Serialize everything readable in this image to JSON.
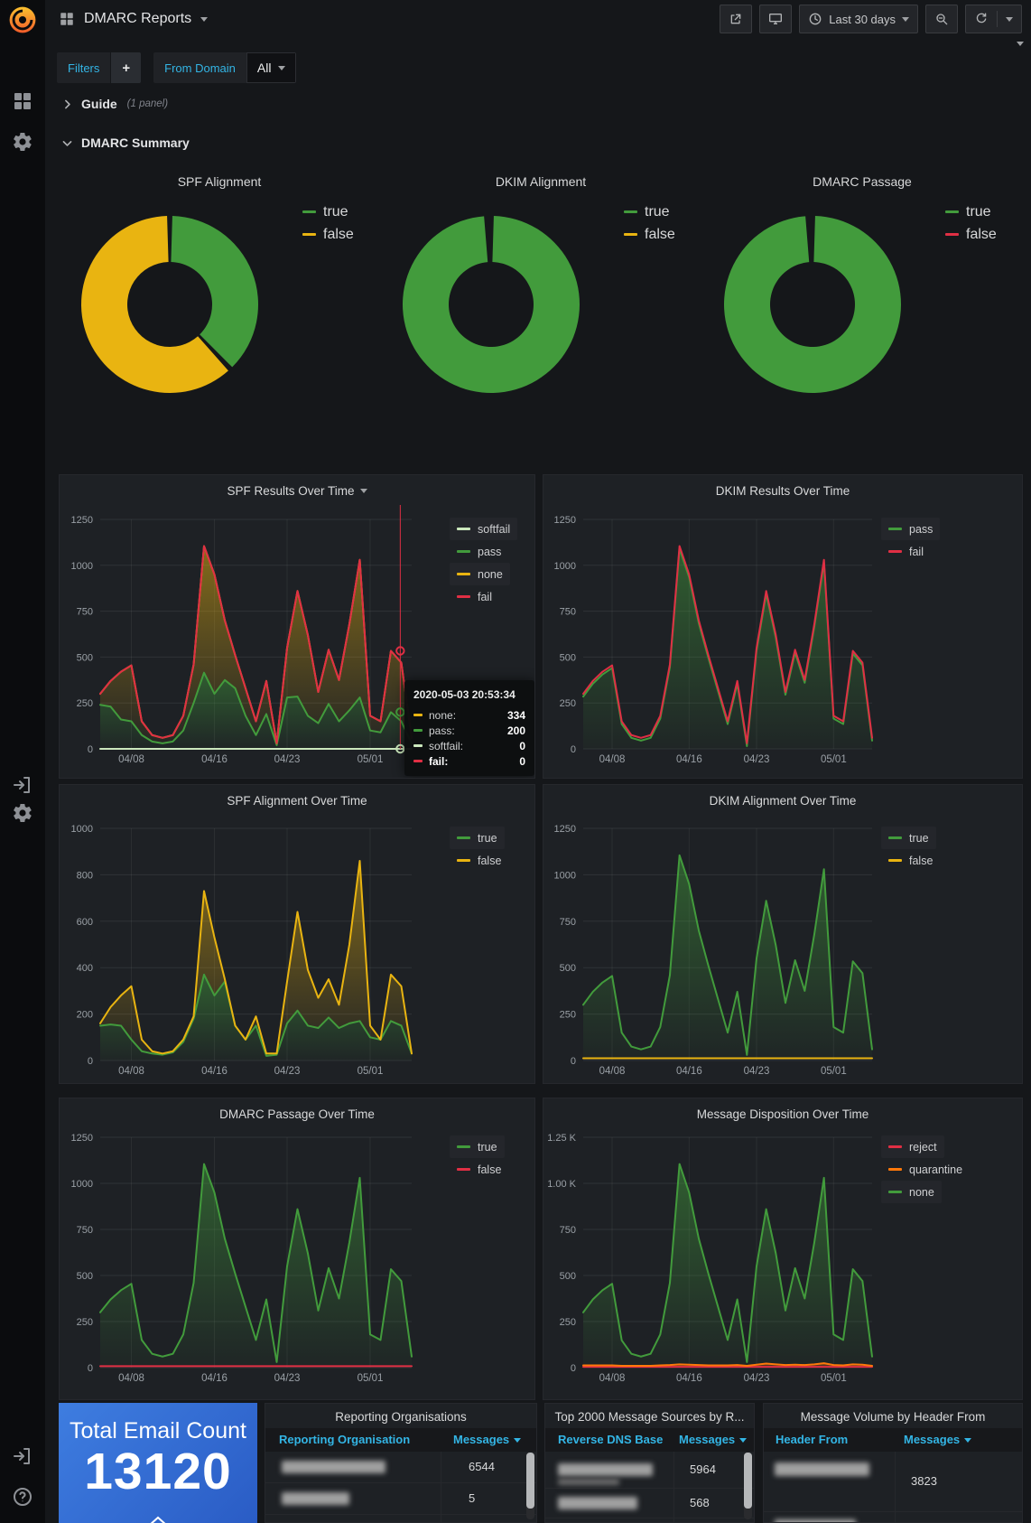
{
  "colors": {
    "green": "#429b3c",
    "yellow": "#e9b411",
    "red": "#e02f44",
    "pale_green": "#cbe8bd",
    "orange": "#ff780a",
    "cyan": "#33b5e5",
    "grid": "rgba(255,255,255,0.08)"
  },
  "header": {
    "title": "DMARC Reports",
    "time_range": "Last 30 days"
  },
  "filters": {
    "label": "Filters",
    "add_label": "+",
    "variable": {
      "label": "From Domain",
      "value": "All"
    }
  },
  "rows": {
    "guide": {
      "title": "Guide",
      "meta": "(1 panel)"
    },
    "summary": {
      "title": "DMARC Summary"
    }
  },
  "chart_data": [
    {
      "id": "spf-alignment-pie",
      "type": "pie",
      "title": "SPF Alignment",
      "labels": [
        "true",
        "false"
      ],
      "values": [
        38,
        62
      ],
      "unit": "percent",
      "colors": [
        "green",
        "yellow"
      ],
      "legend_position": "right"
    },
    {
      "id": "dkim-alignment-pie",
      "type": "pie",
      "title": "DKIM Alignment",
      "labels": [
        "true",
        "false"
      ],
      "values": [
        99.2,
        0.8
      ],
      "unit": "percent",
      "colors": [
        "green",
        "yellow"
      ],
      "legend_position": "right"
    },
    {
      "id": "dmarc-passage-pie",
      "type": "pie",
      "title": "DMARC Passage",
      "labels": [
        "true",
        "false"
      ],
      "values": [
        99.2,
        0.8
      ],
      "unit": "percent",
      "colors": [
        "green",
        "red"
      ],
      "legend_position": "right"
    },
    {
      "id": "spf-results",
      "type": "area",
      "title": "SPF Results Over Time",
      "stacked": true,
      "x": [
        "04/05",
        "04/06",
        "04/07",
        "04/08",
        "04/09",
        "04/10",
        "04/11",
        "04/12",
        "04/13",
        "04/14",
        "04/15",
        "04/16",
        "04/17",
        "04/18",
        "04/19",
        "04/20",
        "04/21",
        "04/22",
        "04/23",
        "04/24",
        "04/25",
        "04/26",
        "04/27",
        "04/28",
        "04/29",
        "04/30",
        "05/01",
        "05/02",
        "05/03",
        "05/04",
        "05/05"
      ],
      "x_ticks": [
        "04/08",
        "04/16",
        "04/23",
        "05/01"
      ],
      "x_tick_idx": [
        3,
        11,
        18,
        26
      ],
      "ymax": 1250,
      "yticks": [
        0,
        250,
        500,
        750,
        1000,
        1250
      ],
      "series": [
        {
          "name": "softfail",
          "color": "pale_green",
          "fill": false,
          "values": [
            0,
            0,
            0,
            0,
            0,
            0,
            0,
            0,
            0,
            0,
            0,
            0,
            0,
            0,
            0,
            0,
            0,
            0,
            0,
            0,
            0,
            0,
            0,
            0,
            0,
            0,
            0,
            0,
            0,
            0,
            0
          ]
        },
        {
          "name": "pass",
          "color": "green",
          "fill": true,
          "values": [
            240,
            230,
            160,
            150,
            75,
            40,
            30,
            40,
            100,
            250,
            415,
            300,
            375,
            330,
            180,
            75,
            190,
            20,
            280,
            285,
            180,
            140,
            245,
            150,
            210,
            280,
            100,
            90,
            200,
            150,
            30
          ]
        },
        {
          "name": "none",
          "color": "yellow",
          "fill": true,
          "values": [
            60,
            140,
            260,
            305,
            75,
            35,
            30,
            35,
            80,
            210,
            690,
            650,
            325,
            180,
            150,
            75,
            180,
            10,
            270,
            575,
            440,
            170,
            295,
            225,
            470,
            750,
            80,
            60,
            334,
            320,
            30
          ]
        },
        {
          "name": "fail",
          "color": "red",
          "fill": false,
          "values": [
            0,
            0,
            0,
            0,
            0,
            0,
            0,
            0,
            0,
            0,
            0,
            0,
            0,
            0,
            0,
            0,
            0,
            0,
            0,
            0,
            0,
            0,
            0,
            0,
            0,
            0,
            0,
            0,
            0,
            0,
            0
          ]
        }
      ],
      "legend": [
        "softfail",
        "pass",
        "none",
        "fail"
      ],
      "hover": {
        "x_index": 28.9,
        "line_color": "red",
        "points": [
          {
            "value": 534,
            "color": "red"
          },
          {
            "value": 200,
            "color": "green"
          },
          {
            "value": 0,
            "color": "pale_green"
          }
        ]
      }
    },
    {
      "id": "dkim-results",
      "type": "area",
      "title": "DKIM Results Over Time",
      "stacked": true,
      "x": [
        "04/05",
        "04/06",
        "04/07",
        "04/08",
        "04/09",
        "04/10",
        "04/11",
        "04/12",
        "04/13",
        "04/14",
        "04/15",
        "04/16",
        "04/17",
        "04/18",
        "04/19",
        "04/20",
        "04/21",
        "04/22",
        "04/23",
        "04/24",
        "04/25",
        "04/26",
        "04/27",
        "04/28",
        "04/29",
        "04/30",
        "05/01",
        "05/02",
        "05/03",
        "05/04",
        "05/05"
      ],
      "x_ticks": [
        "04/08",
        "04/16",
        "04/23",
        "05/01"
      ],
      "x_tick_idx": [
        3,
        11,
        18,
        26
      ],
      "ymax": 1250,
      "yticks": [
        0,
        250,
        500,
        750,
        1000,
        1250
      ],
      "series": [
        {
          "name": "pass",
          "color": "green",
          "fill": true,
          "values": [
            285,
            355,
            405,
            440,
            135,
            60,
            45,
            60,
            165,
            445,
            1090,
            935,
            685,
            495,
            315,
            135,
            355,
            15,
            535,
            845,
            605,
            295,
            525,
            360,
            665,
            1015,
            165,
            135,
            519,
            455,
            45
          ]
        },
        {
          "name": "fail",
          "color": "red",
          "fill": false,
          "values": [
            15,
            15,
            15,
            15,
            15,
            15,
            15,
            15,
            15,
            15,
            15,
            15,
            15,
            15,
            15,
            15,
            15,
            15,
            15,
            15,
            15,
            15,
            15,
            15,
            15,
            15,
            15,
            15,
            15,
            15,
            15
          ]
        }
      ],
      "legend": [
        "pass",
        "fail"
      ]
    },
    {
      "id": "spf-align",
      "type": "area",
      "title": "SPF Alignment Over Time",
      "stacked": true,
      "x": [
        "04/05",
        "04/06",
        "04/07",
        "04/08",
        "04/09",
        "04/10",
        "04/11",
        "04/12",
        "04/13",
        "04/14",
        "04/15",
        "04/16",
        "04/17",
        "04/18",
        "04/19",
        "04/20",
        "04/21",
        "04/22",
        "04/23",
        "04/24",
        "04/25",
        "04/26",
        "04/27",
        "04/28",
        "04/29",
        "04/30",
        "05/01",
        "05/02",
        "05/03",
        "05/04",
        "05/05"
      ],
      "x_ticks": [
        "04/08",
        "04/16",
        "04/23",
        "05/01"
      ],
      "x_tick_idx": [
        3,
        11,
        18,
        26
      ],
      "ymax": 1000,
      "yticks": [
        0,
        200,
        400,
        600,
        800,
        1000
      ],
      "series": [
        {
          "name": "true",
          "color": "green",
          "fill": true,
          "values": [
            150,
            155,
            150,
            90,
            40,
            30,
            25,
            35,
            80,
            180,
            370,
            280,
            340,
            150,
            90,
            150,
            20,
            25,
            160,
            215,
            150,
            140,
            185,
            140,
            160,
            170,
            100,
            90,
            170,
            150,
            30
          ]
        },
        {
          "name": "false",
          "color": "yellow",
          "fill": true,
          "values": [
            10,
            75,
            130,
            230,
            50,
            10,
            5,
            5,
            10,
            10,
            360,
            250,
            10,
            0,
            0,
            40,
            10,
            5,
            180,
            425,
            240,
            130,
            165,
            100,
            340,
            690,
            50,
            0,
            200,
            170,
            0
          ]
        }
      ],
      "legend": [
        "true",
        "false"
      ]
    },
    {
      "id": "dkim-align",
      "type": "area",
      "title": "DKIM Alignment Over Time",
      "stacked": true,
      "x": [
        "04/05",
        "04/06",
        "04/07",
        "04/08",
        "04/09",
        "04/10",
        "04/11",
        "04/12",
        "04/13",
        "04/14",
        "04/15",
        "04/16",
        "04/17",
        "04/18",
        "04/19",
        "04/20",
        "04/21",
        "04/22",
        "04/23",
        "04/24",
        "04/25",
        "04/26",
        "04/27",
        "04/28",
        "04/29",
        "04/30",
        "05/01",
        "05/02",
        "05/03",
        "05/04",
        "05/05"
      ],
      "x_ticks": [
        "04/08",
        "04/16",
        "04/23",
        "05/01"
      ],
      "x_tick_idx": [
        3,
        11,
        18,
        26
      ],
      "ymax": 1250,
      "yticks": [
        0,
        250,
        500,
        750,
        1000,
        1250
      ],
      "series": [
        {
          "name": "false",
          "color": "yellow",
          "fill": false,
          "values": [
            12,
            12,
            12,
            12,
            12,
            12,
            12,
            12,
            12,
            12,
            12,
            12,
            12,
            12,
            12,
            12,
            12,
            12,
            12,
            12,
            12,
            12,
            12,
            12,
            12,
            12,
            12,
            12,
            12,
            12,
            12
          ]
        },
        {
          "name": "true",
          "color": "green",
          "fill": true,
          "values": [
            288,
            358,
            408,
            443,
            138,
            63,
            48,
            63,
            168,
            448,
            1093,
            938,
            688,
            498,
            318,
            138,
            358,
            18,
            538,
            848,
            608,
            298,
            528,
            363,
            668,
            1018,
            168,
            138,
            522,
            458,
            48
          ]
        }
      ],
      "legend": [
        "true",
        "false"
      ]
    },
    {
      "id": "dmarc-passage",
      "type": "area",
      "title": "DMARC Passage Over Time",
      "stacked": true,
      "x": [
        "04/05",
        "04/06",
        "04/07",
        "04/08",
        "04/09",
        "04/10",
        "04/11",
        "04/12",
        "04/13",
        "04/14",
        "04/15",
        "04/16",
        "04/17",
        "04/18",
        "04/19",
        "04/20",
        "04/21",
        "04/22",
        "04/23",
        "04/24",
        "04/25",
        "04/26",
        "04/27",
        "04/28",
        "04/29",
        "04/30",
        "05/01",
        "05/02",
        "05/03",
        "05/04",
        "05/05"
      ],
      "x_ticks": [
        "04/08",
        "04/16",
        "04/23",
        "05/01"
      ],
      "x_tick_idx": [
        3,
        11,
        18,
        26
      ],
      "ymax": 1250,
      "yticks": [
        0,
        250,
        500,
        750,
        1000,
        1250
      ],
      "series": [
        {
          "name": "false",
          "color": "red",
          "fill": false,
          "values": [
            8,
            8,
            8,
            8,
            8,
            8,
            8,
            8,
            8,
            8,
            8,
            8,
            8,
            8,
            8,
            8,
            8,
            8,
            8,
            8,
            8,
            8,
            8,
            8,
            8,
            8,
            8,
            8,
            8,
            8,
            8
          ]
        },
        {
          "name": "true",
          "color": "green",
          "fill": true,
          "values": [
            292,
            362,
            412,
            447,
            142,
            67,
            52,
            67,
            172,
            452,
            1097,
            942,
            692,
            502,
            322,
            142,
            362,
            22,
            542,
            852,
            612,
            302,
            532,
            367,
            672,
            1022,
            172,
            142,
            526,
            462,
            52
          ]
        }
      ],
      "legend": [
        "true",
        "false"
      ]
    },
    {
      "id": "disposition",
      "type": "area",
      "title": "Message Disposition Over Time",
      "stacked": true,
      "x": [
        "04/05",
        "04/06",
        "04/07",
        "04/08",
        "04/09",
        "04/10",
        "04/11",
        "04/12",
        "04/13",
        "04/14",
        "04/15",
        "04/16",
        "04/17",
        "04/18",
        "04/19",
        "04/20",
        "04/21",
        "04/22",
        "04/23",
        "04/24",
        "04/25",
        "04/26",
        "04/27",
        "04/28",
        "04/29",
        "04/30",
        "05/01",
        "05/02",
        "05/03",
        "05/04",
        "05/05"
      ],
      "x_ticks": [
        "04/08",
        "04/16",
        "04/23",
        "05/01"
      ],
      "x_tick_idx": [
        3,
        11,
        18,
        26
      ],
      "ymax": 1250,
      "yticks": [
        0,
        250,
        500,
        750,
        1000,
        1250
      ],
      "ytick_labels": [
        "0",
        "250",
        "500",
        "750",
        "1.00 K",
        "1.25 K"
      ],
      "series": [
        {
          "name": "reject",
          "color": "red",
          "fill": false,
          "values": [
            4,
            4,
            4,
            4,
            4,
            4,
            4,
            4,
            4,
            4,
            4,
            4,
            4,
            4,
            4,
            4,
            4,
            4,
            4,
            4,
            4,
            4,
            4,
            4,
            4,
            4,
            4,
            4,
            4,
            4,
            4
          ]
        },
        {
          "name": "quarantine",
          "color": "orange",
          "fill": true,
          "values": [
            8,
            8,
            8,
            8,
            6,
            6,
            6,
            6,
            8,
            10,
            14,
            12,
            10,
            8,
            8,
            8,
            10,
            6,
            12,
            18,
            14,
            10,
            12,
            10,
            14,
            20,
            10,
            8,
            14,
            12,
            6
          ]
        },
        {
          "name": "none",
          "color": "green",
          "fill": true,
          "values": [
            288,
            358,
            408,
            443,
            138,
            65,
            50,
            65,
            168,
            446,
            1087,
            934,
            686,
            498,
            318,
            138,
            356,
            20,
            534,
            838,
            602,
            296,
            524,
            361,
            662,
            1006,
            166,
            138,
            516,
            454,
            50
          ]
        }
      ],
      "legend": [
        "reject",
        "quarantine",
        "none"
      ]
    }
  ],
  "tooltip": {
    "timestamp": "2020-05-03 20:53:34",
    "rows": [
      {
        "label": "none:",
        "value": "334",
        "color": "yellow",
        "bold": false
      },
      {
        "label": "pass:",
        "value": "200",
        "color": "green",
        "bold": false
      },
      {
        "label": "softfail:",
        "value": "0",
        "color": "pale_green",
        "bold": false
      },
      {
        "label": "fail:",
        "value": "0",
        "color": "red",
        "bold": true
      }
    ]
  },
  "stat": {
    "title": "Total Email Count",
    "value": "13120"
  },
  "tables": [
    {
      "id": "reporting-orgs",
      "title": "Reporting Organisations",
      "columns": [
        "Reporting Organisation",
        "Messages"
      ],
      "sorted_column": "Messages",
      "rows": [
        {
          "redacted": true,
          "messages": "6544"
        },
        {
          "redacted": true,
          "messages": "5"
        }
      ],
      "has_scrollbar": true
    },
    {
      "id": "top-sources",
      "title": "Top 2000 Message Sources by R...",
      "columns": [
        "Reverse DNS Base",
        "Messages"
      ],
      "sorted_column": "Messages",
      "rows": [
        {
          "redacted": true,
          "messages": "5964"
        },
        {
          "redacted": true,
          "messages": "568"
        }
      ],
      "has_scrollbar": true
    },
    {
      "id": "header-from",
      "title": "Message Volume by Header From",
      "columns": [
        "Header From",
        "Messages"
      ],
      "sorted_column": "Messages",
      "rows": [
        {
          "redacted": true,
          "messages": "3823"
        },
        {
          "redacted": true,
          "messages": ""
        }
      ],
      "has_scrollbar": false
    }
  ]
}
